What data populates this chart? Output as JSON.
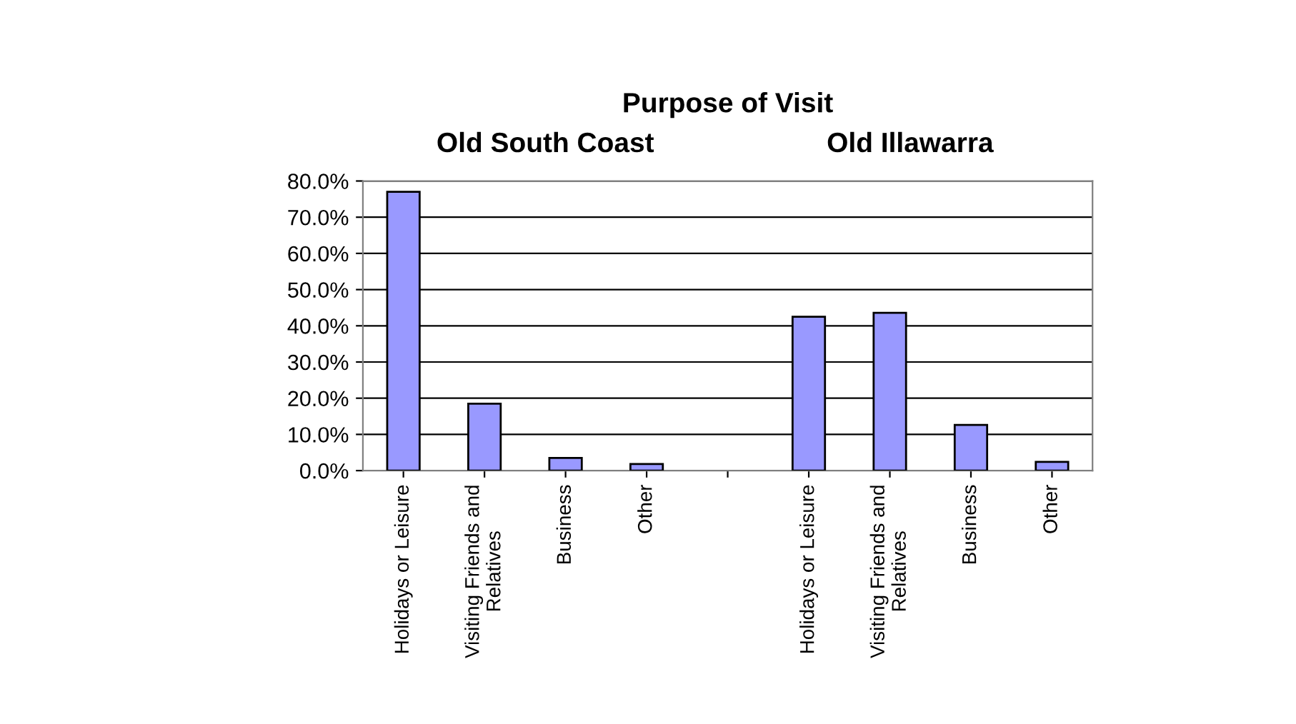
{
  "chart_data": {
    "type": "bar",
    "title": "Purpose of Visit",
    "annotations": [
      "Old South Coast",
      "Old Illawarra"
    ],
    "categories": [
      "Holidays or Leisure",
      "Visiting Friends and Relatives",
      "Business",
      "Other",
      null,
      "Holidays or Leisure",
      "Visiting Friends and Relatives",
      "Business",
      "Other"
    ],
    "values": [
      77,
      18.5,
      3.5,
      1.8,
      null,
      42.5,
      43.6,
      12.6,
      2.4
    ],
    "color": "#9999ff",
    "ylim": [
      0,
      80
    ],
    "yticks": [
      {
        "value": 0,
        "label": "0.0%"
      },
      {
        "value": 10,
        "label": "10.0%"
      },
      {
        "value": 20,
        "label": "20.0%"
      },
      {
        "value": 30,
        "label": "30.0%"
      },
      {
        "value": 40,
        "label": "40.0%"
      },
      {
        "value": 50,
        "label": "50.0%"
      },
      {
        "value": 60,
        "label": "60.0%"
      },
      {
        "value": 70,
        "label": "70.0%"
      },
      {
        "value": 80,
        "label": "80.0%"
      }
    ],
    "grid": "y",
    "legend": false
  }
}
